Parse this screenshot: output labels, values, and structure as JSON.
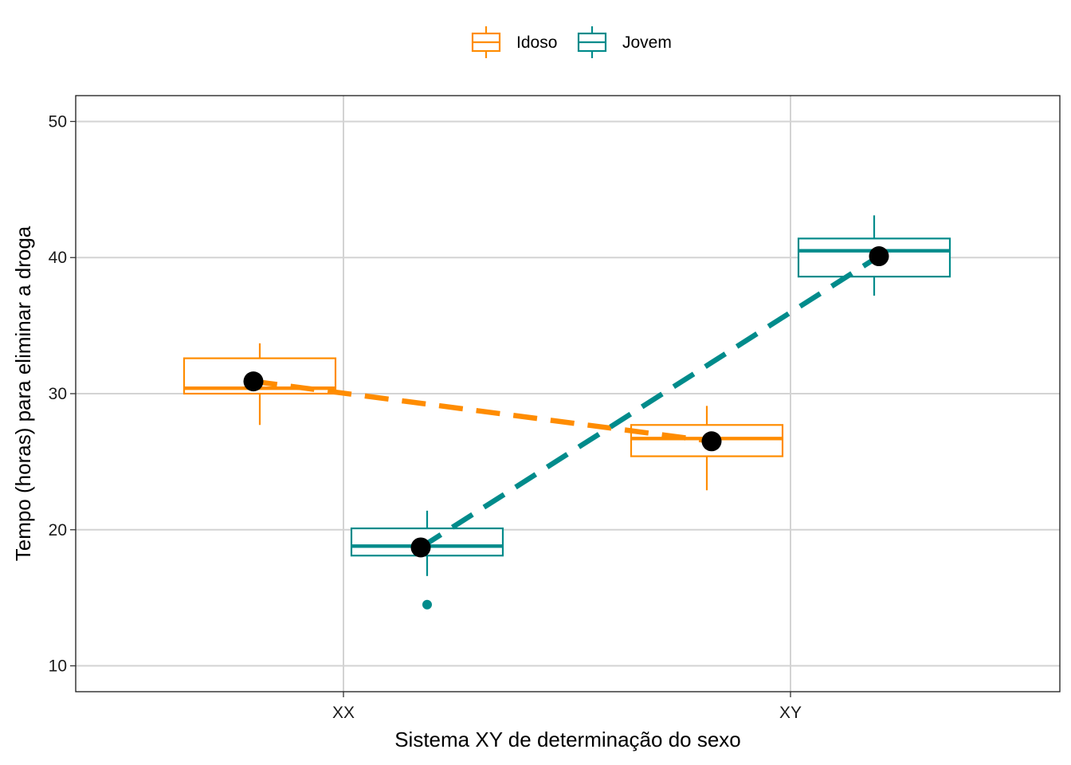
{
  "chart_data": {
    "type": "box",
    "xlabel": "Sistema XY de determinação do sexo",
    "ylabel": "Tempo (horas) para eliminar a droga",
    "categories": [
      "XX",
      "XY"
    ],
    "y_ticks": [
      10,
      20,
      30,
      40,
      50
    ],
    "ylim": [
      8.1,
      51.9
    ],
    "grid": true,
    "legend_position": "top",
    "legend": [
      "Idoso",
      "Jovem"
    ],
    "series": [
      {
        "name": "Idoso",
        "color": "#FF8C00",
        "boxes": [
          {
            "category": "XX",
            "min": 27.7,
            "q1": 30.0,
            "median": 30.4,
            "q3": 32.6,
            "max": 33.7,
            "outliers": []
          },
          {
            "category": "XY",
            "min": 22.9,
            "q1": 25.4,
            "median": 26.7,
            "q3": 27.7,
            "max": 29.1,
            "outliers": []
          }
        ],
        "means": [
          30.9,
          26.5
        ]
      },
      {
        "name": "Jovem",
        "color": "#008B8B",
        "boxes": [
          {
            "category": "XX",
            "min": 16.6,
            "q1": 18.1,
            "median": 18.8,
            "q3": 20.1,
            "max": 21.4,
            "outliers": [
              14.5
            ]
          },
          {
            "category": "XY",
            "min": 37.2,
            "q1": 38.6,
            "median": 40.5,
            "q3": 41.4,
            "max": 43.1,
            "outliers": []
          }
        ],
        "means": [
          18.7,
          40.1
        ]
      }
    ]
  }
}
